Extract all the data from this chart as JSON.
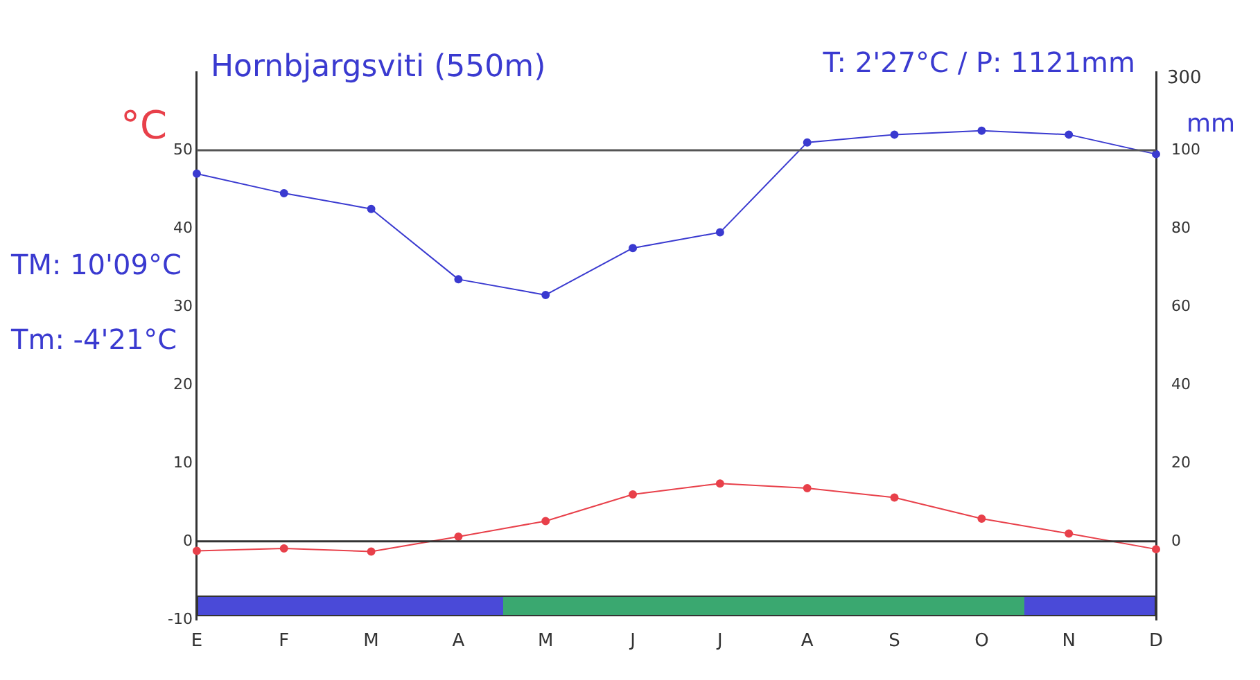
{
  "chart_data": {
    "type": "line",
    "title": "Hornbjargsviti (550m)",
    "subtitle": "T: 2'27°C / P: 1121mm",
    "ylabel": "°C",
    "y2label": "mm",
    "categories": [
      "E",
      "F",
      "M",
      "A",
      "M",
      "J",
      "J",
      "A",
      "S",
      "O",
      "N",
      "D"
    ],
    "series": [
      {
        "color": "#e8404a",
        "axis": "y",
        "values": [
          -1.2,
          -0.9,
          -1.3,
          0.6,
          2.6,
          6.0,
          7.4,
          6.8,
          5.6,
          2.9,
          1.0,
          -1.0
        ]
      },
      {
        "color": "#3a3ad0",
        "axis": "y2",
        "values": [
          94,
          89,
          85,
          67,
          63,
          75,
          79,
          102,
          104,
          105,
          104,
          99
        ]
      }
    ],
    "ylim": [
      -10,
      60
    ],
    "yticks": [
      -10,
      0,
      10,
      20,
      30,
      40,
      50
    ],
    "y2lim": [
      -20,
      120
    ],
    "y2ticks": [
      0,
      20,
      40,
      60,
      80,
      100
    ],
    "ref_lines": [
      {
        "axis": "y",
        "value": 50,
        "color": "#555555"
      },
      {
        "axis": "y",
        "value": 0,
        "color": "#333333"
      }
    ],
    "annotations": [
      "TM: 10'09°C",
      "Tm: -4'21°C",
      "300"
    ],
    "marker": "circle",
    "line_style": "solid",
    "grid": false,
    "legend": false
  }
}
